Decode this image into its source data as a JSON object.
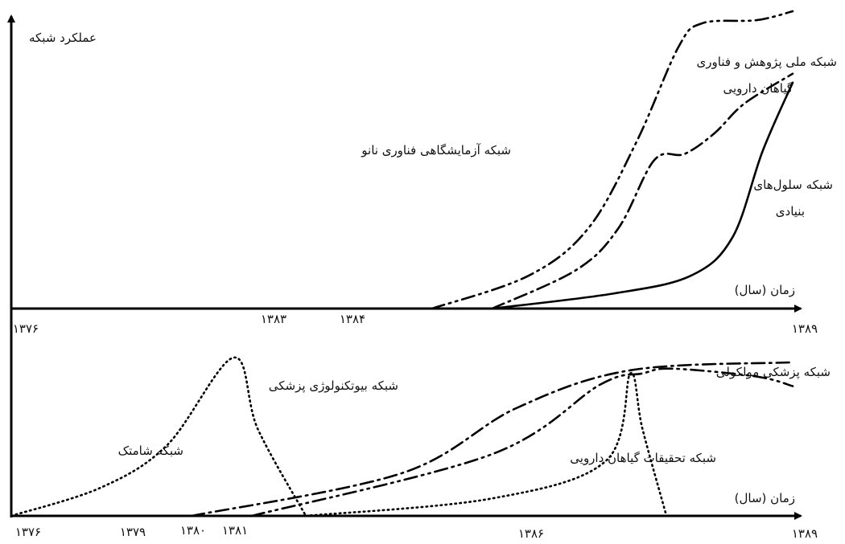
{
  "chart_data": [
    {
      "type": "line",
      "panel": "top",
      "ylabel": "عملکرد شبکه",
      "xlabel": "زمان (سال)",
      "x_ticks": [
        "۱۳۷۶",
        "۱۳۸۳",
        "۱۳۸۴",
        "۱۳۸۹"
      ],
      "series": [
        {
          "name": "شبکه آزمایشگاهی فناوری نانو",
          "style": "dash-dot-dot",
          "points": [
            [
              1383.0,
              0.0
            ],
            [
              1384.6,
              0.11
            ],
            [
              1385.6,
              0.27
            ],
            [
              1386.4,
              0.56
            ],
            [
              1387.1,
              0.88
            ],
            [
              1387.5,
              0.96
            ],
            [
              1388.4,
              0.97
            ],
            [
              1389.0,
              1.0
            ]
          ]
        },
        {
          "name": "شبکه ملی پژوهش و فناوری گیاهان دارویی",
          "style": "dash-dot",
          "points": [
            [
              1384.0,
              0.0
            ],
            [
              1385.4,
              0.13
            ],
            [
              1386.1,
              0.27
            ],
            [
              1386.7,
              0.5
            ],
            [
              1387.2,
              0.52
            ],
            [
              1387.7,
              0.59
            ],
            [
              1388.2,
              0.69
            ],
            [
              1389.0,
              0.79
            ]
          ]
        },
        {
          "name": "شبکه سلول‌های بنیادی",
          "style": "solid",
          "points": [
            [
              1384.0,
              0.0
            ],
            [
              1386.0,
              0.05
            ],
            [
              1387.3,
              0.11
            ],
            [
              1388.0,
              0.24
            ],
            [
              1388.5,
              0.53
            ],
            [
              1389.0,
              0.76
            ]
          ]
        }
      ]
    },
    {
      "type": "line",
      "panel": "bottom",
      "xlabel": "زمان (سال)",
      "x_ticks": [
        "۱۳۷۶",
        "۱۳۷۹",
        "۱۳۸۰",
        "۱۳۸۱",
        "۱۳۸۶",
        "۱۳۸۹"
      ],
      "series": [
        {
          "name": "شبکه شامتک",
          "style": "dotted",
          "points": [
            [
              1376.0,
              0.0
            ],
            [
              1377.5,
              0.18
            ],
            [
              1378.6,
              0.45
            ],
            [
              1379.7,
              1.0
            ],
            [
              1380.1,
              0.55
            ],
            [
              1380.9,
              0.0
            ]
          ]
        },
        {
          "name": "شبکه بیوتکنولوژی پزشکی",
          "style": "dash-dot",
          "points": [
            [
              1379.0,
              0.0
            ],
            [
              1382.5,
              0.27
            ],
            [
              1384.4,
              0.68
            ],
            [
              1386.3,
              0.92
            ],
            [
              1389.0,
              0.97
            ]
          ]
        },
        {
          "name": "شبکه پزشکی مولکولی",
          "style": "dash-dot-dot",
          "points": [
            [
              1380.0,
              0.0
            ],
            [
              1384.0,
              0.39
            ],
            [
              1385.8,
              0.83
            ],
            [
              1386.5,
              0.9
            ],
            [
              1387.0,
              0.93
            ],
            [
              1388.4,
              0.88
            ],
            [
              1389.0,
              0.82
            ]
          ]
        },
        {
          "name": "شبکه تحقیقات گیاهان دارویی",
          "style": "dotted",
          "points": [
            [
              1380.9,
              0.0
            ],
            [
              1384.0,
              0.11
            ],
            [
              1385.9,
              0.35
            ],
            [
              1386.3,
              0.9
            ],
            [
              1386.5,
              0.55
            ],
            [
              1386.9,
              0.0
            ]
          ]
        }
      ]
    }
  ],
  "annotations": {
    "top_ylabel": "عملکرد شبکه",
    "top_xlabel": "زمان (سال)",
    "bottom_xlabel": "زمان (سال)",
    "nano_label": "شبکه آزمایشگاهی فناوری نانو",
    "herb_label_line1": "شبکه ملی پژوهش و فناوری",
    "herb_label_line2": "گیاهان دارویی",
    "stem_label_line1": "شبکه سلول‌های",
    "stem_label_line2": "بنیادی",
    "biotech_label": "شبکه بیوتکنولوژی پزشکی",
    "molecular_label": "شبکه پزشکی مولکولی",
    "shamtak_label": "شبکه شامتک",
    "herbres_label": "شبکه تحقیقات گیاهان دارویی"
  }
}
